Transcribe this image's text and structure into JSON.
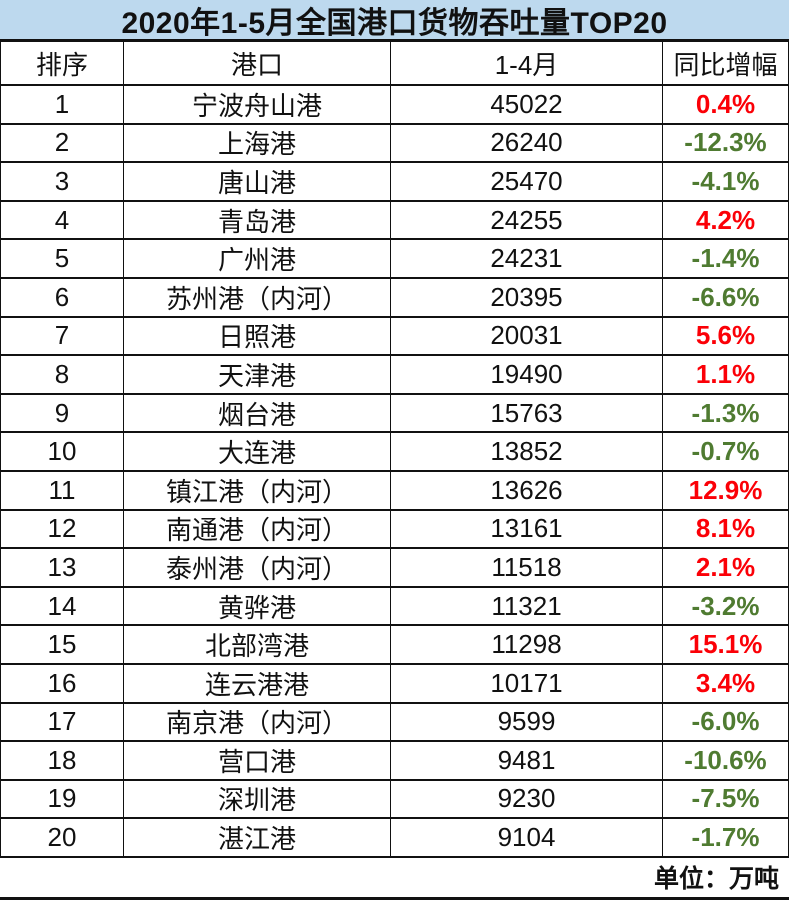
{
  "title": "2020年1-5月全国港口货物吞吐量TOP20",
  "footer_note": "单位：万吨",
  "columns": {
    "rank": "排序",
    "port": "港口",
    "period": "1-4月",
    "growth": "同比增幅"
  },
  "colors": {
    "positive_growth": "#fb0007",
    "negative_growth": "#4f7b31",
    "title_background": "#bdd9ee",
    "grid_border": "#111111"
  },
  "rows": [
    {
      "rank": "1",
      "port": "宁波舟山港",
      "value": "45022",
      "growth": "0.4%",
      "trend": "up"
    },
    {
      "rank": "2",
      "port": "上海港",
      "value": "26240",
      "growth": "-12.3%",
      "trend": "down"
    },
    {
      "rank": "3",
      "port": "唐山港",
      "value": "25470",
      "growth": "-4.1%",
      "trend": "down"
    },
    {
      "rank": "4",
      "port": "青岛港",
      "value": "24255",
      "growth": "4.2%",
      "trend": "up"
    },
    {
      "rank": "5",
      "port": "广州港",
      "value": "24231",
      "growth": "-1.4%",
      "trend": "down"
    },
    {
      "rank": "6",
      "port": "苏州港（内河）",
      "value": "20395",
      "growth": "-6.6%",
      "trend": "down"
    },
    {
      "rank": "7",
      "port": "日照港",
      "value": "20031",
      "growth": "5.6%",
      "trend": "up"
    },
    {
      "rank": "8",
      "port": "天津港",
      "value": "19490",
      "growth": "1.1%",
      "trend": "up"
    },
    {
      "rank": "9",
      "port": "烟台港",
      "value": "15763",
      "growth": "-1.3%",
      "trend": "down"
    },
    {
      "rank": "10",
      "port": "大连港",
      "value": "13852",
      "growth": "-0.7%",
      "trend": "down"
    },
    {
      "rank": "11",
      "port": "镇江港（内河）",
      "value": "13626",
      "growth": "12.9%",
      "trend": "up"
    },
    {
      "rank": "12",
      "port": "南通港（内河）",
      "value": "13161",
      "growth": "8.1%",
      "trend": "up"
    },
    {
      "rank": "13",
      "port": "泰州港（内河）",
      "value": "11518",
      "growth": "2.1%",
      "trend": "up"
    },
    {
      "rank": "14",
      "port": "黄骅港",
      "value": "11321",
      "growth": "-3.2%",
      "trend": "down"
    },
    {
      "rank": "15",
      "port": "北部湾港",
      "value": "11298",
      "growth": "15.1%",
      "trend": "up"
    },
    {
      "rank": "16",
      "port": "连云港港",
      "value": "10171",
      "growth": "3.4%",
      "trend": "up"
    },
    {
      "rank": "17",
      "port": "南京港（内河）",
      "value": "9599",
      "growth": "-6.0%",
      "trend": "down"
    },
    {
      "rank": "18",
      "port": "营口港",
      "value": "9481",
      "growth": "-10.6%",
      "trend": "down"
    },
    {
      "rank": "19",
      "port": "深圳港",
      "value": "9230",
      "growth": "-7.5%",
      "trend": "down"
    },
    {
      "rank": "20",
      "port": "湛江港",
      "value": "9104",
      "growth": "-1.7%",
      "trend": "down"
    }
  ],
  "chart_data": {
    "type": "table",
    "title": "2020年1-5月全国港口货物吞吐量TOP20",
    "unit": "万吨",
    "columns": [
      "排序",
      "港口",
      "1-4月",
      "同比增幅"
    ],
    "categories": [
      "宁波舟山港",
      "上海港",
      "唐山港",
      "青岛港",
      "广州港",
      "苏州港（内河）",
      "日照港",
      "天津港",
      "烟台港",
      "大连港",
      "镇江港（内河）",
      "南通港（内河）",
      "泰州港（内河）",
      "黄骅港",
      "北部湾港",
      "连云港港",
      "南京港（内河）",
      "营口港",
      "深圳港",
      "湛江港"
    ],
    "series": [
      {
        "name": "1-4月吞吐量(万吨)",
        "values": [
          45022,
          26240,
          25470,
          24255,
          24231,
          20395,
          20031,
          19490,
          15763,
          13852,
          13626,
          13161,
          11518,
          11321,
          11298,
          10171,
          9599,
          9481,
          9230,
          9104
        ]
      },
      {
        "name": "同比增幅(%)",
        "values": [
          0.4,
          -12.3,
          -4.1,
          4.2,
          -1.4,
          -6.6,
          5.6,
          1.1,
          -1.3,
          -0.7,
          12.9,
          8.1,
          2.1,
          -3.2,
          15.1,
          3.4,
          -6.0,
          -10.6,
          -7.5,
          -1.7
        ]
      }
    ],
    "value_color_rule": "positive=red, negative=green"
  }
}
